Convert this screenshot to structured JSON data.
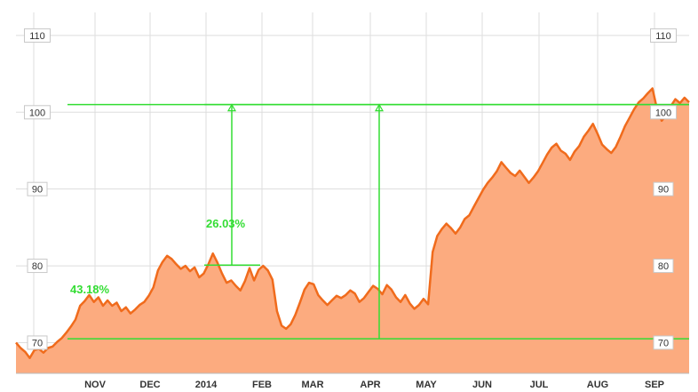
{
  "chart_data": {
    "type": "area",
    "ylim": [
      66,
      113
    ],
    "yticks": [
      70,
      80,
      90,
      100,
      110
    ],
    "x_months": [
      "NOV",
      "DEC",
      "2014",
      "FEB",
      "MAR",
      "APR",
      "MAY",
      "JUN",
      "JUL",
      "AUG",
      "SEP"
    ],
    "colors": {
      "line": "#f06b1c",
      "fill": "#fcab7f",
      "annotation": "#33dd33"
    },
    "series": [
      {
        "values": [
          [
            0.0,
            70.0
          ],
          [
            1.0,
            69.3
          ],
          [
            2.0,
            68.8
          ],
          [
            3.0,
            68.0
          ],
          [
            4.0,
            69.0
          ],
          [
            5.0,
            69.2
          ],
          [
            6.0,
            68.7
          ],
          [
            7.0,
            69.3
          ],
          [
            8.0,
            69.5
          ],
          [
            9.0,
            70.1
          ],
          [
            10.0,
            70.6
          ],
          [
            11.0,
            71.3
          ],
          [
            12.0,
            72.1
          ],
          [
            13.0,
            73.0
          ],
          [
            14.0,
            74.8
          ],
          [
            15.0,
            75.4
          ],
          [
            16.0,
            76.2
          ],
          [
            17.0,
            75.3
          ],
          [
            18.0,
            75.9
          ],
          [
            19.0,
            74.8
          ],
          [
            20.0,
            75.5
          ],
          [
            21.0,
            74.8
          ],
          [
            22.0,
            75.2
          ],
          [
            23.0,
            74.1
          ],
          [
            24.0,
            74.6
          ],
          [
            25.0,
            73.8
          ],
          [
            26.0,
            74.3
          ],
          [
            27.0,
            74.9
          ],
          [
            28.0,
            75.3
          ],
          [
            29.0,
            76.1
          ],
          [
            30.0,
            77.2
          ],
          [
            31.0,
            79.4
          ],
          [
            32.0,
            80.5
          ],
          [
            33.0,
            81.3
          ],
          [
            34.0,
            80.9
          ],
          [
            35.0,
            80.2
          ],
          [
            36.0,
            79.6
          ],
          [
            37.0,
            80.0
          ],
          [
            38.0,
            79.3
          ],
          [
            39.0,
            79.8
          ],
          [
            40.0,
            78.5
          ],
          [
            41.0,
            79.0
          ],
          [
            42.0,
            80.2
          ],
          [
            43.0,
            81.6
          ],
          [
            44.0,
            80.4
          ],
          [
            45.0,
            79.0
          ],
          [
            46.0,
            77.8
          ],
          [
            47.0,
            78.1
          ],
          [
            48.0,
            77.4
          ],
          [
            49.0,
            76.8
          ],
          [
            50.0,
            78.0
          ],
          [
            51.0,
            79.7
          ],
          [
            52.0,
            78.1
          ],
          [
            53.0,
            79.5
          ],
          [
            54.0,
            80.0
          ],
          [
            55.0,
            79.4
          ],
          [
            56.0,
            78.2
          ],
          [
            57.0,
            74.1
          ],
          [
            58.0,
            72.2
          ],
          [
            59.0,
            71.8
          ],
          [
            60.0,
            72.4
          ],
          [
            61.0,
            73.6
          ],
          [
            62.0,
            75.2
          ],
          [
            63.0,
            76.9
          ],
          [
            64.0,
            77.8
          ],
          [
            65.0,
            77.6
          ],
          [
            66.0,
            76.2
          ],
          [
            67.0,
            75.5
          ],
          [
            68.0,
            74.9
          ],
          [
            69.0,
            75.5
          ],
          [
            70.0,
            76.1
          ],
          [
            71.0,
            75.8
          ],
          [
            72.0,
            76.2
          ],
          [
            73.0,
            76.8
          ],
          [
            74.0,
            76.4
          ],
          [
            75.0,
            75.3
          ],
          [
            76.0,
            75.8
          ],
          [
            77.0,
            76.6
          ],
          [
            78.0,
            77.4
          ],
          [
            79.0,
            77.0
          ],
          [
            80.0,
            76.3
          ],
          [
            81.0,
            77.5
          ],
          [
            82.0,
            76.9
          ],
          [
            83.0,
            75.9
          ],
          [
            84.0,
            75.3
          ],
          [
            85.0,
            76.2
          ],
          [
            86.0,
            75.1
          ],
          [
            87.0,
            74.4
          ],
          [
            88.0,
            74.9
          ],
          [
            89.0,
            75.7
          ],
          [
            90.0,
            75.0
          ],
          [
            91.0,
            81.8
          ],
          [
            92.0,
            83.9
          ],
          [
            93.0,
            84.8
          ],
          [
            94.0,
            85.5
          ],
          [
            95.0,
            84.9
          ],
          [
            96.0,
            84.2
          ],
          [
            97.0,
            85.0
          ],
          [
            98.0,
            86.1
          ],
          [
            99.0,
            86.6
          ],
          [
            100.0,
            87.7
          ],
          [
            101.0,
            88.8
          ],
          [
            102.0,
            89.9
          ],
          [
            103.0,
            90.8
          ],
          [
            104.0,
            91.5
          ],
          [
            105.0,
            92.3
          ],
          [
            106.0,
            93.5
          ],
          [
            107.0,
            92.8
          ],
          [
            108.0,
            92.1
          ],
          [
            109.0,
            91.7
          ],
          [
            110.0,
            92.4
          ],
          [
            111.0,
            91.6
          ],
          [
            112.0,
            90.8
          ],
          [
            113.0,
            91.5
          ],
          [
            114.0,
            92.3
          ],
          [
            115.0,
            93.4
          ],
          [
            116.0,
            94.5
          ],
          [
            117.0,
            95.4
          ],
          [
            118.0,
            95.9
          ],
          [
            119.0,
            95.0
          ],
          [
            120.0,
            94.6
          ],
          [
            121.0,
            93.8
          ],
          [
            122.0,
            94.9
          ],
          [
            123.0,
            95.6
          ],
          [
            124.0,
            96.8
          ],
          [
            125.0,
            97.6
          ],
          [
            126.0,
            98.5
          ],
          [
            127.0,
            97.2
          ],
          [
            128.0,
            95.8
          ],
          [
            129.0,
            95.2
          ],
          [
            130.0,
            94.7
          ],
          [
            131.0,
            95.5
          ],
          [
            132.0,
            96.8
          ],
          [
            133.0,
            98.2
          ],
          [
            134.0,
            99.3
          ],
          [
            135.0,
            100.4
          ],
          [
            136.0,
            101.3
          ],
          [
            137.0,
            101.8
          ],
          [
            138.0,
            102.5
          ],
          [
            139.0,
            103.1
          ],
          [
            140.0,
            100.4
          ],
          [
            141.0,
            98.9
          ],
          [
            142.0,
            99.6
          ],
          [
            143.0,
            100.8
          ],
          [
            144.0,
            101.7
          ],
          [
            145.0,
            101.2
          ],
          [
            146.0,
            101.9
          ],
          [
            147.0,
            101.3
          ]
        ]
      }
    ],
    "annotations": [
      {
        "label": "43.18%",
        "from": 70.5,
        "to": 101.0
      },
      {
        "label": "26.03%",
        "from": 80.1,
        "to": 101.0
      }
    ]
  }
}
